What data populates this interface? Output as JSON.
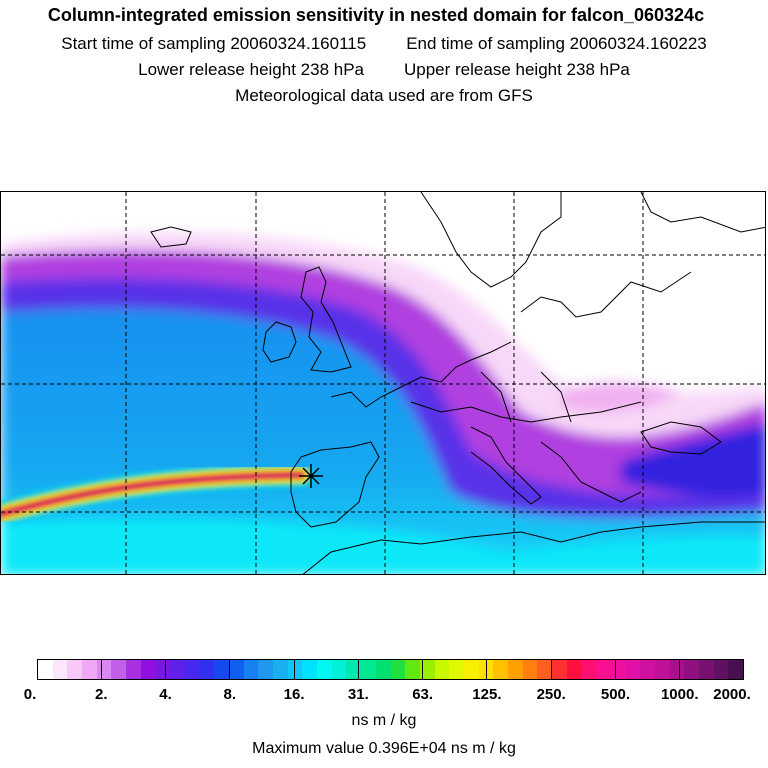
{
  "header": {
    "title": "Column-integrated emission sensitivity in nested domain for falcon_060324c",
    "start_time": "Start time of sampling 20060324.160115",
    "end_time": "End time of sampling 20060324.160223",
    "lower_height": "Lower release height  238 hPa",
    "upper_height": "Upper release height  238 hPa",
    "met_data": "Meteorological data used are from GFS"
  },
  "colorbar": {
    "labels": [
      "0.",
      "2.",
      "4.",
      "8.",
      "16.",
      "31.",
      "63.",
      "125.",
      "250.",
      "500.",
      "1000.",
      "2000."
    ],
    "colors": [
      "#ffffff",
      "#fce6fc",
      "#f8c8f8",
      "#f0a8f4",
      "#d888f0",
      "#c060e8",
      "#a830e0",
      "#9010e0",
      "#7818e0",
      "#6020e8",
      "#4828f0",
      "#3030f0",
      "#1848f0",
      "#1060f0",
      "#1880f0",
      "#2098f0",
      "#18b0f0",
      "#10c8f8",
      "#00e0ff",
      "#00f8f0",
      "#00f0d8",
      "#00e8b0",
      "#00e890",
      "#00e070",
      "#20e040",
      "#60e810",
      "#98f000",
      "#c8f800",
      "#e0f800",
      "#f8f000",
      "#ffe000",
      "#ffc000",
      "#ffa000",
      "#ff8010",
      "#ff6020",
      "#ff3030",
      "#ff1040",
      "#ff1070",
      "#f81090",
      "#f010a0",
      "#e010a8",
      "#d010a0",
      "#c01098",
      "#a81090",
      "#901080",
      "#781070",
      "#601060",
      "#481050"
    ],
    "units": "ns m / kg",
    "max_value": "Maximum value  0.396E+04 ns m / kg"
  },
  "map": {
    "receptor_marker": "star-icon",
    "coastline_color": "#000000",
    "gridline_style": "dashed"
  }
}
